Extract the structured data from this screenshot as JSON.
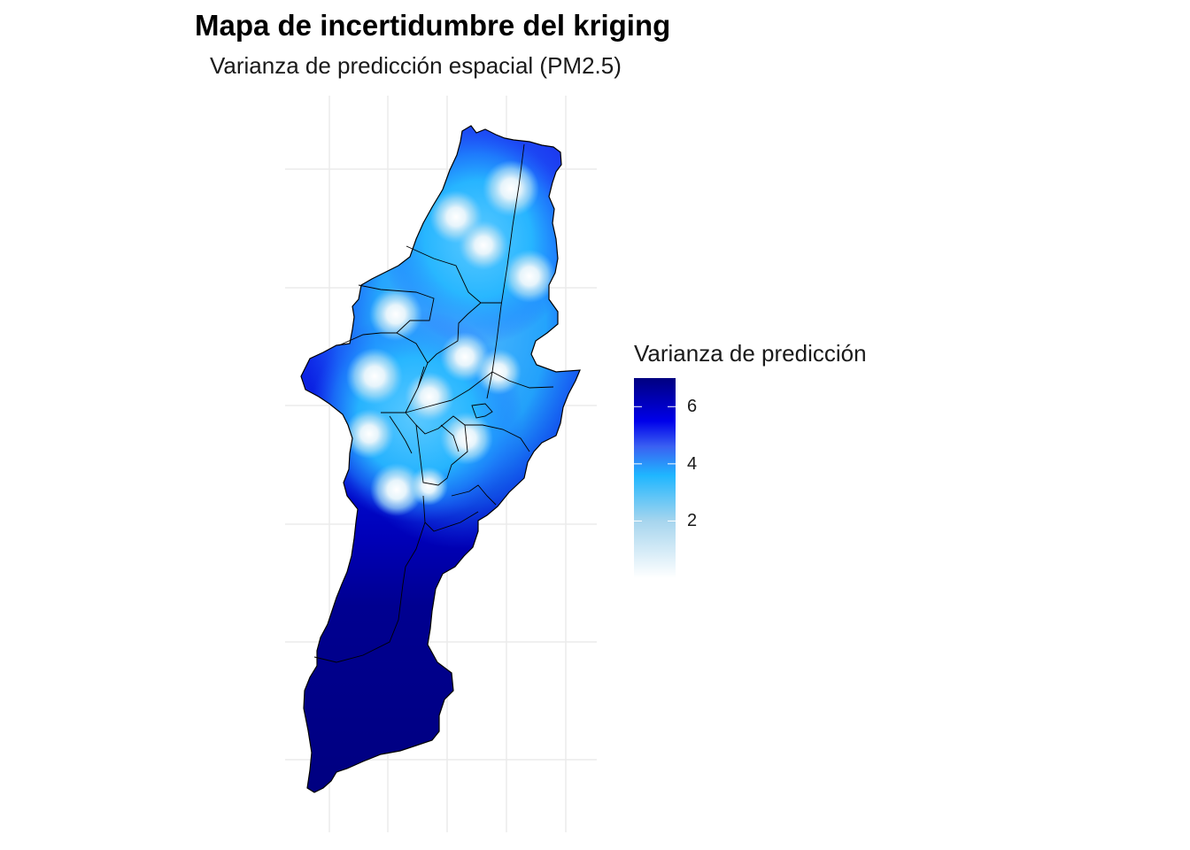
{
  "title": "Mapa de incertidumbre del kriging",
  "subtitle": "Varianza de predicción espacial (PM2.5)",
  "legend": {
    "title": "Varianza de predicción",
    "min": 0,
    "max": 7,
    "ticks": [
      {
        "value": 2,
        "label": "2"
      },
      {
        "value": 4,
        "label": "4"
      },
      {
        "value": 6,
        "label": "6"
      }
    ],
    "color_stops": [
      {
        "value": 0,
        "color": "#ffffff"
      },
      {
        "value": 2,
        "color": "#a6d5ee"
      },
      {
        "value": 3.6,
        "color": "#1fb6ff"
      },
      {
        "value": 4.6,
        "color": "#3a61f2"
      },
      {
        "value": 5.5,
        "color": "#0000ea"
      },
      {
        "value": 7,
        "color": "#000080"
      }
    ]
  },
  "map": {
    "type": "raster-map",
    "fill": "prediction variance",
    "grid": true,
    "legend_position": "right"
  }
}
